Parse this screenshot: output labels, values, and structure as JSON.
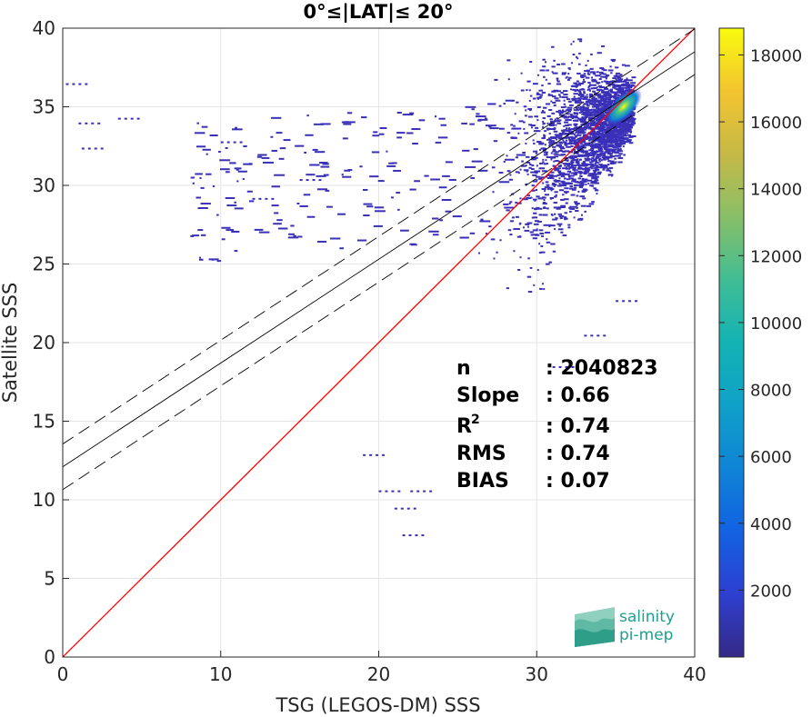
{
  "chart_data": {
    "type": "heatmap",
    "title": "0°≤|LAT|≤ 20°",
    "xlabel": "TSG (LEGOS-DM) SSS",
    "ylabel": "Satellite SSS",
    "xlim": [
      0,
      40
    ],
    "ylim": [
      0,
      40
    ],
    "xticks": [
      "0",
      "10",
      "20",
      "30",
      "40"
    ],
    "yticks": [
      "0",
      "5",
      "10",
      "15",
      "20",
      "25",
      "30",
      "35",
      "40"
    ],
    "grid": true,
    "colorbar": {
      "colormap": "parula",
      "range": [
        0,
        18800
      ],
      "ticks": [
        "2000",
        "4000",
        "6000",
        "8000",
        "10000",
        "12000",
        "14000",
        "16000",
        "18000"
      ]
    },
    "reference_line": {
      "color": "#ff0000",
      "points": [
        [
          0,
          0
        ],
        [
          40,
          40
        ]
      ]
    },
    "regression": {
      "slope": 0.66,
      "intercept": 12.1,
      "band_offset": 1.45
    },
    "density_peak": {
      "x": 35.5,
      "y": 35.0
    },
    "stats": [
      {
        "label": "n",
        "value": ": 2040823"
      },
      {
        "label": "Slope",
        "value": ": 0.66"
      },
      {
        "label": "R",
        "sup": "2",
        "value": ": 0.74"
      },
      {
        "label": "RMS",
        "value": ": 0.74"
      },
      {
        "label": "BIAS",
        "value": ": 0.07"
      }
    ]
  },
  "logo": {
    "line1": "salinity",
    "line2": "pi-mep"
  },
  "colors": {
    "background": "#ffffff",
    "grid": "#e6e6e6",
    "axis": "#262626",
    "one_to_one": "#ff0000",
    "fit": "#000000"
  }
}
